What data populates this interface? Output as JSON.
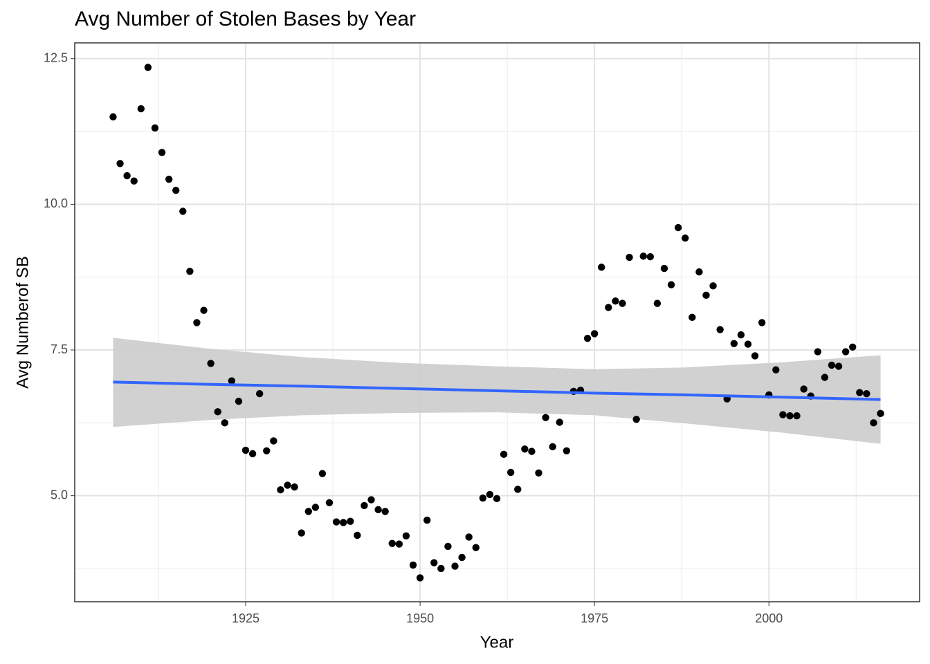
{
  "chart_data": {
    "type": "scatter",
    "title": "Avg Number of Stolen Bases by Year",
    "x_label": "Year",
    "y_label": "Avg Numberof SB",
    "x": [
      1906,
      1907,
      1908,
      1909,
      1910,
      1911,
      1912,
      1913,
      1914,
      1915,
      1916,
      1917,
      1918,
      1919,
      1920,
      1921,
      1922,
      1923,
      1924,
      1925,
      1926,
      1927,
      1928,
      1929,
      1930,
      1931,
      1932,
      1933,
      1934,
      1935,
      1936,
      1937,
      1938,
      1939,
      1940,
      1941,
      1942,
      1943,
      1944,
      1945,
      1946,
      1947,
      1948,
      1949,
      1950,
      1951,
      1952,
      1953,
      1954,
      1955,
      1956,
      1957,
      1958,
      1959,
      1960,
      1961,
      1962,
      1963,
      1964,
      1965,
      1966,
      1967,
      1968,
      1969,
      1970,
      1971,
      1972,
      1973,
      1974,
      1975,
      1976,
      1977,
      1978,
      1979,
      1980,
      1981,
      1982,
      1983,
      1984,
      1985,
      1986,
      1987,
      1988,
      1989,
      1990,
      1991,
      1992,
      1993,
      1994,
      1995,
      1996,
      1997,
      1998,
      1999,
      2000,
      2001,
      2002,
      2003,
      2004,
      2005,
      2006,
      2007,
      2008,
      2009,
      2010,
      2011,
      2012,
      2013,
      2014,
      2015,
      2016
    ],
    "values": [
      11.5,
      10.7,
      10.49,
      10.4,
      11.64,
      12.35,
      11.31,
      10.89,
      10.43,
      10.24,
      9.88,
      8.85,
      7.97,
      8.18,
      7.27,
      6.44,
      6.25,
      6.97,
      6.62,
      5.78,
      5.72,
      6.75,
      5.77,
      5.94,
      5.1,
      5.18,
      5.15,
      4.36,
      4.73,
      4.8,
      5.38,
      4.88,
      4.55,
      4.54,
      4.56,
      4.32,
      4.83,
      4.93,
      4.76,
      4.73,
      4.18,
      4.17,
      4.31,
      3.81,
      3.59,
      4.58,
      3.85,
      3.75,
      4.13,
      3.79,
      3.94,
      4.29,
      4.11,
      4.96,
      5.02,
      4.95,
      5.71,
      5.4,
      5.11,
      5.8,
      5.76,
      5.39,
      6.34,
      5.84,
      6.26,
      5.77,
      6.79,
      6.81,
      7.7,
      7.78,
      8.92,
      8.23,
      8.34,
      8.3,
      9.09,
      6.31,
      9.11,
      9.1,
      8.3,
      8.9,
      8.62,
      9.6,
      9.42,
      8.06,
      8.84,
      8.44,
      8.6,
      7.85,
      6.66,
      7.61,
      7.76,
      7.6,
      7.4,
      7.97,
      6.73,
      7.16,
      6.39,
      6.37,
      6.37,
      6.83,
      6.71,
      7.47,
      7.03,
      7.24,
      7.22,
      7.47,
      7.55,
      6.77,
      6.75,
      6.25,
      6.41
    ],
    "color": "#000000",
    "smooth": {
      "color": "#3366ff",
      "band_color": "#cccccc",
      "x": [
        1906,
        1920,
        1933,
        1947,
        1961,
        1975,
        1988,
        2002,
        2016
      ],
      "values": [
        6.95,
        6.91,
        6.88,
        6.84,
        6.8,
        6.76,
        6.73,
        6.69,
        6.65
      ],
      "lower": [
        6.18,
        6.3,
        6.38,
        6.42,
        6.43,
        6.38,
        6.24,
        6.08,
        5.89
      ],
      "upper": [
        7.71,
        7.52,
        7.38,
        7.28,
        7.22,
        7.17,
        7.2,
        7.29,
        7.41
      ]
    },
    "xlim": [
      1900.5,
      2021.6
    ],
    "ylim": [
      3.18,
      12.77
    ],
    "xticks": [
      1925,
      1950,
      1975,
      2000
    ],
    "yticks": [
      {
        "value": 5,
        "label": "5.0"
      },
      {
        "value": 7.5,
        "label": "7.5"
      },
      {
        "value": 10,
        "label": "10.0"
      },
      {
        "value": 12.5,
        "label": "12.5"
      }
    ],
    "x_minor_grid": [
      1912.5,
      1937.5,
      1962.5,
      1987.5,
      2012.5
    ],
    "y_minor_grid": [
      3.75,
      6.25,
      8.75,
      11.25
    ],
    "grid": true
  }
}
